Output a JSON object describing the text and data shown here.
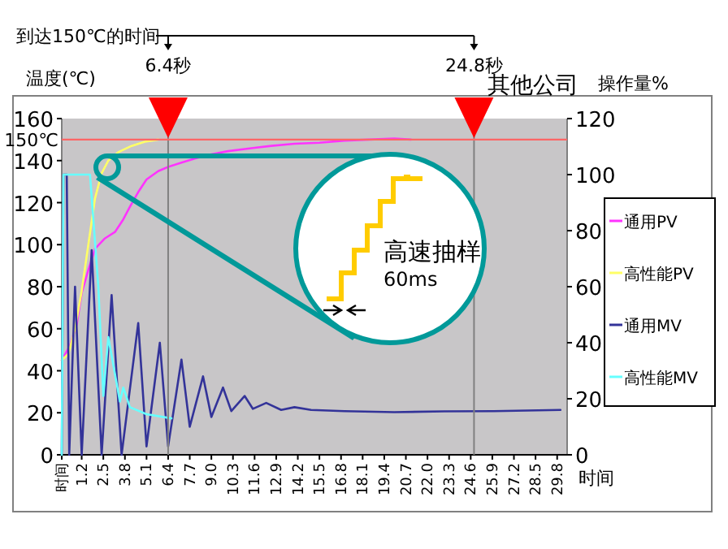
{
  "chart_data": {
    "type": "line",
    "xlabel": "时间",
    "ylabel": "温度(℃)",
    "y2label": "操作量%",
    "annotations": [
      "到达150℃的时间",
      "其他公司",
      "高速抽样",
      "60ms"
    ],
    "xlim": [
      0,
      30.4
    ],
    "xticks": [
      {
        "value": 0,
        "label": "时间"
      },
      1.2,
      2.5,
      3.8,
      5.1,
      6.4,
      7.7,
      {
        "value": 9,
        "label": "9.0"
      },
      10.3,
      11.6,
      12.9,
      14.2,
      15.5,
      16.8,
      18.1,
      19.4,
      20.7,
      {
        "value": 22,
        "label": "22.0"
      },
      23.3,
      24.6,
      25.9,
      27.2,
      28.5,
      29.8
    ],
    "ylim": [
      0,
      160
    ],
    "yticks": [
      0,
      20,
      40,
      60,
      80,
      100,
      120,
      140,
      160
    ],
    "y2lim": [
      0,
      120
    ],
    "y2ticks": [
      0,
      20,
      40,
      60,
      80,
      100,
      120
    ],
    "ref_lines": [
      {
        "axis": "x",
        "value": 6.4,
        "label": "6.4秒",
        "color": "#808080"
      },
      {
        "axis": "x",
        "value": 24.8,
        "label": "24.8秒",
        "color": "#808080"
      },
      {
        "axis": "y",
        "value": 150,
        "label": "150℃",
        "color": "#ff6666"
      }
    ],
    "legend": "right",
    "series": [
      {
        "name": "通用PV",
        "color": "#ff33ff",
        "x": [
          0,
          0.5,
          0.9,
          1.2,
          1.6,
          2.0,
          2.6,
          3.2,
          3.7,
          4.1,
          4.6,
          5.1,
          5.8,
          6.4,
          7.2,
          8.0,
          9,
          10,
          11.5,
          12.6,
          14,
          15.5,
          17,
          18.5,
          20,
          21
        ],
        "values": [
          45,
          52,
          62,
          77,
          88,
          98,
          103,
          106,
          112,
          118,
          125,
          131,
          135,
          137,
          139,
          141,
          143,
          144.5,
          146,
          147,
          148,
          148.5,
          149.5,
          150,
          150.5,
          150
        ]
      },
      {
        "name": "高性能PV",
        "color": "#ffff66",
        "x": [
          0,
          0.4,
          0.8,
          1.2,
          1.6,
          2.0,
          2.4,
          2.8,
          3.4,
          4.2,
          5.0,
          5.8
        ],
        "values": [
          45,
          48,
          60,
          78,
          100,
          122,
          134,
          140,
          144,
          147,
          149,
          150
        ]
      },
      {
        "name": "通用MV",
        "color": "#333399",
        "axis": "y2",
        "x": [
          0,
          0.1,
          0.3,
          0.45,
          0.8,
          1.2,
          1.8,
          2.4,
          3.0,
          3.6,
          4.6,
          5.1,
          5.9,
          6.4,
          7.2,
          7.7,
          8.5,
          9.0,
          9.7,
          10.2,
          11.0,
          11.5,
          12.3,
          13.2,
          14,
          15,
          17,
          20,
          23,
          26,
          30
        ],
        "values": [
          0,
          100,
          100,
          0,
          60,
          0,
          73,
          0,
          57,
          0,
          47,
          3,
          40,
          3,
          34,
          10,
          28,
          13.5,
          24,
          15.6,
          21,
          16.4,
          18.5,
          16,
          17,
          16,
          15.6,
          15.2,
          15.5,
          15.6,
          16
        ]
      },
      {
        "name": "高性能MV",
        "color": "#66ffff",
        "axis": "y2",
        "x": [
          0,
          0.1,
          1.7,
          2.2,
          2.5,
          2.8,
          3.5,
          3.7,
          4.1,
          5.1,
          6.6
        ],
        "values": [
          0,
          100,
          100,
          60,
          21,
          42,
          19,
          24,
          17,
          14.5,
          13
        ]
      }
    ]
  }
}
